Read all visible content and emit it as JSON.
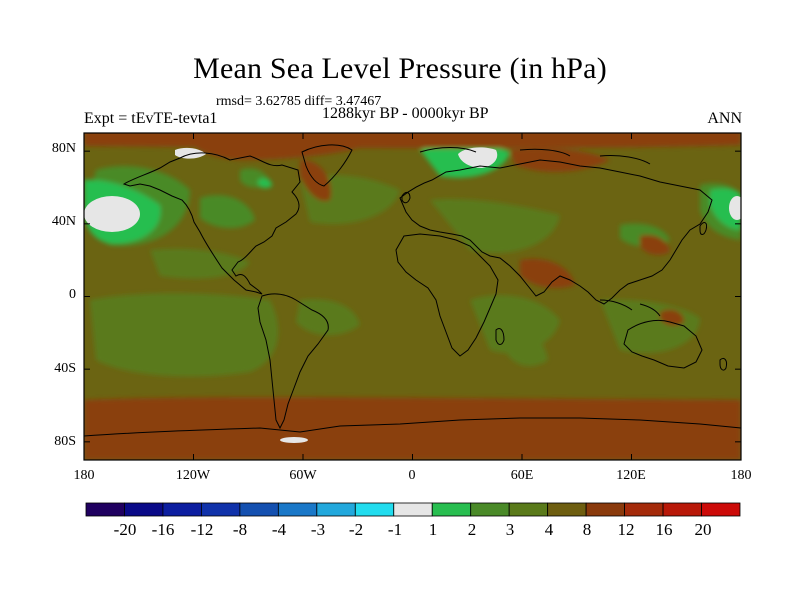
{
  "title": "Mean Sea Level Pressure (in hPa)",
  "stats_line": "rmsd= 3.62785 diff= 3.47467",
  "subtitle": "1288kyr BP - 0000kyr BP",
  "experiment": "Expt = tEvTE-tevta1",
  "season": "ANN",
  "lat_ticks": [
    "80N",
    "40N",
    "0",
    "40S",
    "80S"
  ],
  "lon_ticks": [
    "180",
    "120W",
    "60W",
    "0",
    "60E",
    "120E",
    "180"
  ],
  "colorbar": {
    "labels": [
      "-20",
      "-16",
      "-12",
      "-8",
      "-4",
      "-3",
      "-2",
      "-1",
      "1",
      "2",
      "3",
      "4",
      "8",
      "12",
      "16",
      "20"
    ],
    "colors": [
      "#200060",
      "#0a0a88",
      "#0c1ea0",
      "#1032aa",
      "#1450b0",
      "#1a78c8",
      "#22a8dc",
      "#22dcee",
      "#e6e6e6",
      "#28be50",
      "#4a8a28",
      "#5a7a1a",
      "#6e5e10",
      "#8a3a0c",
      "#a42a0a",
      "#b81808",
      "#cc0a08"
    ]
  },
  "palette": {
    "base": "#6b6412",
    "olive": "#5a7a1a",
    "green": "#4a8a28",
    "bright_green": "#28be50",
    "brown": "#8a4010",
    "white": "#e6e6e6"
  }
}
